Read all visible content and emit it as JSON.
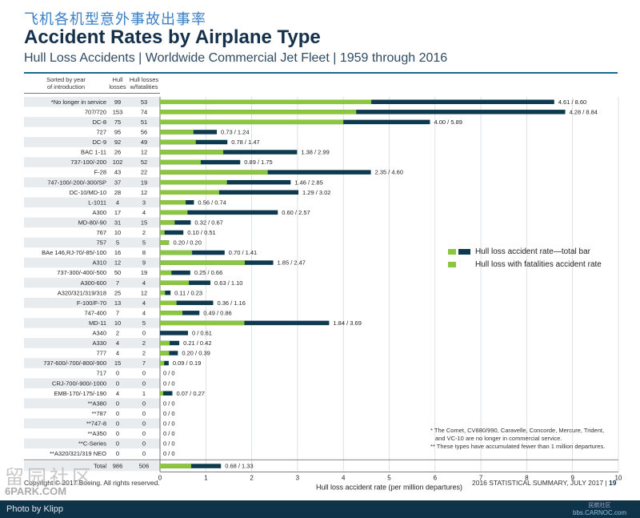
{
  "header": {
    "chinese_title": "飞机各机型意外事故出事率",
    "title": "Accident Rates by Airplane Type",
    "subtitle": "Hull Loss Accidents | Worldwide Commercial Jet Fleet | 1959 through 2016"
  },
  "columns": {
    "sort_label": "Sorted by year\nof introduction",
    "hull_losses": "Hull\nlosses",
    "hull_losses_fatal": "Hull losses\nw/fatalities"
  },
  "legend": {
    "total": "Hull loss accident rate—total bar",
    "fatal": "Hull loss with fatalities accident rate"
  },
  "colors": {
    "total_bar": "#0d3a4f",
    "fatal_bar": "#8cc63f",
    "row_band": "#e8ecee",
    "title_blue": "#3a7fc8"
  },
  "chart_data": {
    "type": "bar",
    "orientation": "horizontal",
    "xlabel": "Hull loss accident rate (per million departures)",
    "xlim": [
      0,
      10
    ],
    "xticks": [
      0,
      1,
      2,
      3,
      4,
      5,
      6,
      7,
      8,
      9,
      10
    ],
    "rows": [
      {
        "name": "*No longer in service",
        "losses": 99,
        "fatal": 53,
        "fatal_rate": 4.61,
        "total_rate": 8.6,
        "label": "4.61 / 8.60"
      },
      {
        "name": "707/720",
        "losses": 153,
        "fatal": 74,
        "fatal_rate": 4.28,
        "total_rate": 8.84,
        "label": "4.28 / 8.84"
      },
      {
        "name": "DC-8",
        "losses": 75,
        "fatal": 51,
        "fatal_rate": 4.0,
        "total_rate": 5.89,
        "label": "4.00 / 5.89"
      },
      {
        "name": "727",
        "losses": 95,
        "fatal": 56,
        "fatal_rate": 0.73,
        "total_rate": 1.24,
        "label": "0.73 / 1.24"
      },
      {
        "name": "DC-9",
        "losses": 92,
        "fatal": 49,
        "fatal_rate": 0.78,
        "total_rate": 1.47,
        "label": "0.78 / 1.47"
      },
      {
        "name": "BAC 1-11",
        "losses": 26,
        "fatal": 12,
        "fatal_rate": 1.38,
        "total_rate": 2.99,
        "label": "1.38 / 2.99"
      },
      {
        "name": "737-100/-200",
        "losses": 102,
        "fatal": 52,
        "fatal_rate": 0.89,
        "total_rate": 1.75,
        "label": "0.89 / 1.75"
      },
      {
        "name": "F-28",
        "losses": 43,
        "fatal": 22,
        "fatal_rate": 2.35,
        "total_rate": 4.6,
        "label": "2.35 / 4.60"
      },
      {
        "name": "747-100/-200/-300/SP",
        "losses": 37,
        "fatal": 19,
        "fatal_rate": 1.46,
        "total_rate": 2.85,
        "label": "1.46 / 2.85"
      },
      {
        "name": "DC-10/MD-10",
        "losses": 28,
        "fatal": 12,
        "fatal_rate": 1.29,
        "total_rate": 3.02,
        "label": "1.29 / 3.02"
      },
      {
        "name": "L-1011",
        "losses": 4,
        "fatal": 3,
        "fatal_rate": 0.56,
        "total_rate": 0.74,
        "label": "0.56 / 0.74"
      },
      {
        "name": "A300",
        "losses": 17,
        "fatal": 4,
        "fatal_rate": 0.6,
        "total_rate": 2.57,
        "label": "0.60 / 2.57"
      },
      {
        "name": "MD-80/-90",
        "losses": 31,
        "fatal": 15,
        "fatal_rate": 0.32,
        "total_rate": 0.67,
        "label": "0.32 / 0.67"
      },
      {
        "name": "767",
        "losses": 10,
        "fatal": 2,
        "fatal_rate": 0.1,
        "total_rate": 0.51,
        "label": "0.10 / 0.51"
      },
      {
        "name": "757",
        "losses": 5,
        "fatal": 5,
        "fatal_rate": 0.2,
        "total_rate": 0.2,
        "label": "0.20 / 0.20"
      },
      {
        "name": "BAe 146,RJ-70/-85/-100",
        "losses": 16,
        "fatal": 8,
        "fatal_rate": 0.7,
        "total_rate": 1.41,
        "label": "0.70 / 1.41"
      },
      {
        "name": "A310",
        "losses": 12,
        "fatal": 9,
        "fatal_rate": 1.85,
        "total_rate": 2.47,
        "label": "1.85 / 2.47"
      },
      {
        "name": "737-300/-400/-500",
        "losses": 50,
        "fatal": 19,
        "fatal_rate": 0.25,
        "total_rate": 0.66,
        "label": "0.25 / 0.66"
      },
      {
        "name": "A300-600",
        "losses": 7,
        "fatal": 4,
        "fatal_rate": 0.63,
        "total_rate": 1.1,
        "label": "0.63 / 1.10"
      },
      {
        "name": "A320/321/319/318",
        "losses": 25,
        "fatal": 12,
        "fatal_rate": 0.11,
        "total_rate": 0.23,
        "label": "0.11 / 0.23"
      },
      {
        "name": "F-100/F-70",
        "losses": 13,
        "fatal": 4,
        "fatal_rate": 0.36,
        "total_rate": 1.16,
        "label": "0.36 / 1.16"
      },
      {
        "name": "747-400",
        "losses": 7,
        "fatal": 4,
        "fatal_rate": 0.49,
        "total_rate": 0.86,
        "label": "0.49 / 0.86"
      },
      {
        "name": "MD-11",
        "losses": 10,
        "fatal": 5,
        "fatal_rate": 1.84,
        "total_rate": 3.69,
        "label": "1.84 / 3.69"
      },
      {
        "name": "A340",
        "losses": 2,
        "fatal": 0,
        "fatal_rate": 0,
        "total_rate": 0.61,
        "label": "0 / 0.61"
      },
      {
        "name": "A330",
        "losses": 4,
        "fatal": 2,
        "fatal_rate": 0.21,
        "total_rate": 0.42,
        "label": "0.21 / 0.42"
      },
      {
        "name": "777",
        "losses": 4,
        "fatal": 2,
        "fatal_rate": 0.2,
        "total_rate": 0.39,
        "label": "0.20 / 0.39"
      },
      {
        "name": "737-600/-700/-800/-900",
        "losses": 15,
        "fatal": 7,
        "fatal_rate": 0.09,
        "total_rate": 0.19,
        "label": "0.09 / 0.19"
      },
      {
        "name": "717",
        "losses": 0,
        "fatal": 0,
        "fatal_rate": 0,
        "total_rate": 0,
        "label": "0 / 0"
      },
      {
        "name": "CRJ-700/-900/-1000",
        "losses": 0,
        "fatal": 0,
        "fatal_rate": 0,
        "total_rate": 0,
        "label": "0 / 0"
      },
      {
        "name": "EMB-170/-175/-190",
        "losses": 4,
        "fatal": 1,
        "fatal_rate": 0.07,
        "total_rate": 0.27,
        "label": "0.07 / 0.27"
      },
      {
        "name": "**A380",
        "losses": 0,
        "fatal": 0,
        "fatal_rate": 0,
        "total_rate": 0,
        "label": "0 / 0"
      },
      {
        "name": "**787",
        "losses": 0,
        "fatal": 0,
        "fatal_rate": 0,
        "total_rate": 0,
        "label": "0 / 0"
      },
      {
        "name": "**747-8",
        "losses": 0,
        "fatal": 0,
        "fatal_rate": 0,
        "total_rate": 0,
        "label": "0 / 0"
      },
      {
        "name": "**A350",
        "losses": 0,
        "fatal": 0,
        "fatal_rate": 0,
        "total_rate": 0,
        "label": "0 / 0"
      },
      {
        "name": "**C-Series",
        "losses": 0,
        "fatal": 0,
        "fatal_rate": 0,
        "total_rate": 0,
        "label": "0 / 0"
      },
      {
        "name": "**A320/321/319 NEO",
        "losses": 0,
        "fatal": 0,
        "fatal_rate": 0,
        "total_rate": 0,
        "label": "0 / 0"
      }
    ],
    "total": {
      "name": "Total",
      "losses": 986,
      "fatal": 506,
      "fatal_rate": 0.68,
      "total_rate": 1.33,
      "label": "0.68 / 1.33"
    }
  },
  "footnotes": {
    "line1": "* The Comet, CV880/990, Caravelle, Concorde, Mercure, Trident,",
    "line2": "and VC-10 are no longer in commercial service.",
    "line3": "** These types have accumulated fewer than 1 million departures."
  },
  "footer": {
    "copyright": "Copyright © 2017 Boeing. All rights reserved.",
    "summary": "2016 STATISTICAL SUMMARY, JULY 2017",
    "page": "19",
    "photo_by": "Photo by Klipp",
    "watermark_cn": "留园社区",
    "watermark_site": "6PARK.COM",
    "site_cn": "民航社区",
    "site_url": "bbs.CARNOC.com"
  }
}
